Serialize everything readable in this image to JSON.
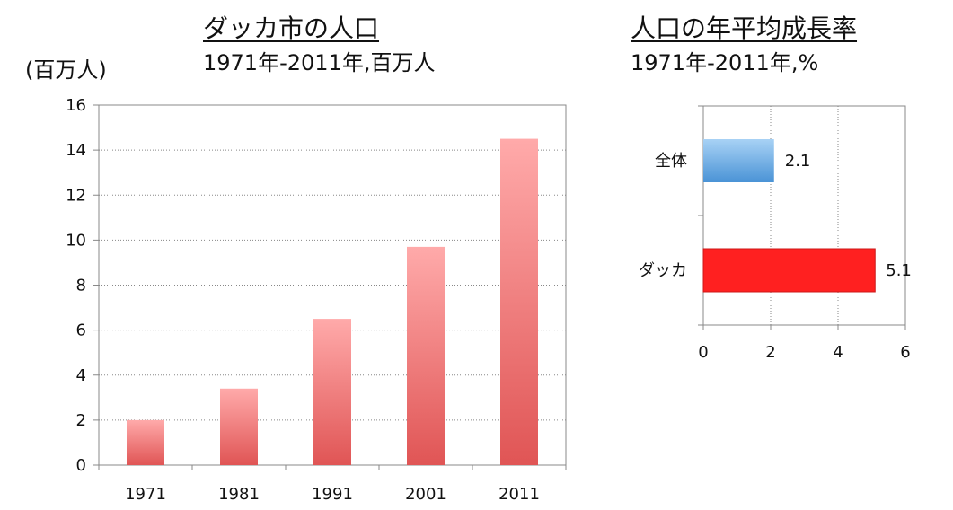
{
  "chart_data": [
    {
      "type": "bar",
      "title": "ダッカ市の人口",
      "subtitle": "1971年-2011年,百万人",
      "ylabel": "(百万人)",
      "categories": [
        "1971",
        "1981",
        "1991",
        "2001",
        "2011"
      ],
      "values": [
        2.0,
        3.4,
        6.5,
        9.7,
        14.5
      ],
      "ylim": [
        0,
        16
      ],
      "yticks": [
        0,
        2,
        4,
        6,
        8,
        10,
        12,
        14,
        16
      ],
      "grid": true,
      "colors": {
        "bar_top": "#ffaaaa",
        "bar_bottom": "#e05555",
        "grid": "#888888",
        "axis": "#888888"
      }
    },
    {
      "type": "bar",
      "orientation": "horizontal",
      "title": "人口の年平均成長率",
      "subtitle": "1971年-2011年,%",
      "categories": [
        "全体",
        "ダッカ"
      ],
      "values": [
        2.1,
        5.1
      ],
      "data_labels": [
        "2.1",
        "5.1"
      ],
      "xlim": [
        0,
        6
      ],
      "xticks": [
        0,
        2,
        4,
        6
      ],
      "grid": true,
      "colors": {
        "bar1_top": "#a8d2f5",
        "bar1_bottom": "#4a93d6",
        "bar2": "#ff2020",
        "bar2_border": "#cc1818",
        "grid": "#888888",
        "axis": "#888888"
      }
    }
  ]
}
